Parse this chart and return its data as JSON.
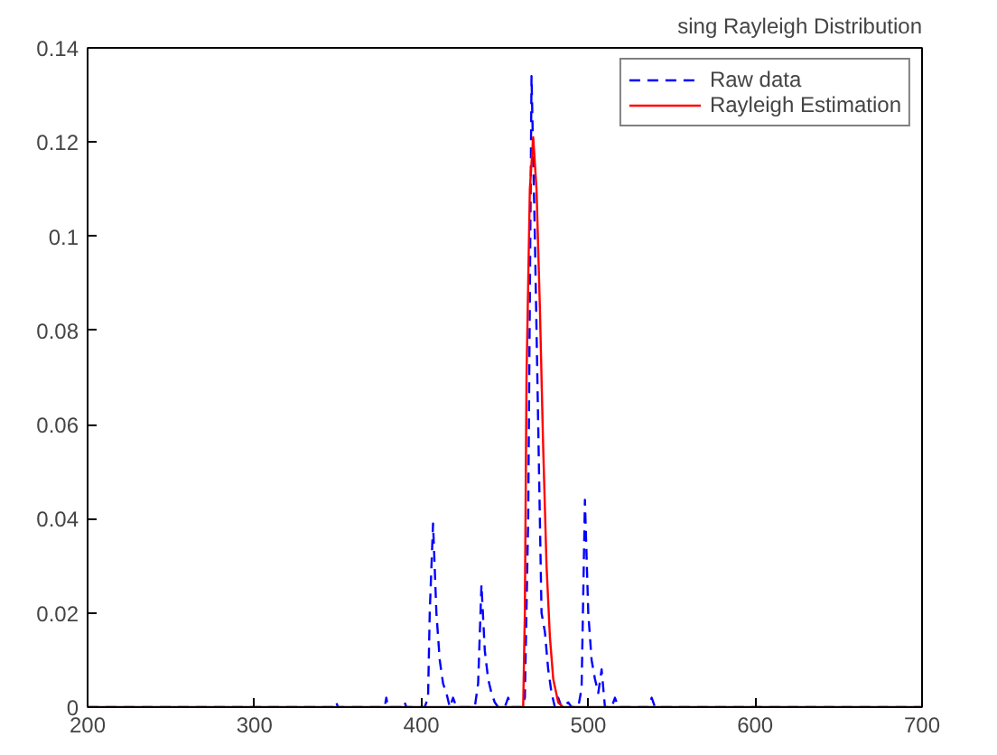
{
  "chart_data": {
    "type": "line",
    "title": "sing Rayleigh Distribution",
    "xlim": [
      200,
      700
    ],
    "xticks": [
      200,
      300,
      400,
      500,
      600,
      700
    ],
    "ylim": [
      0,
      0.14
    ],
    "yticks": [
      0,
      0.02,
      0.04,
      0.06,
      0.08,
      0.1,
      0.12,
      0.14
    ],
    "grid": false,
    "legend": "top right",
    "series": [
      {
        "name": "Raw data",
        "color": "#0000ff",
        "line_style": "dashed",
        "x": [
          200,
          348,
          349,
          350,
          378,
          379,
          380,
          389,
          390,
          391,
          402,
          404,
          405,
          407,
          409,
          411,
          413,
          415,
          417,
          419,
          421,
          432,
          434,
          436,
          438,
          440,
          442,
          444,
          446,
          450,
          452,
          454,
          460,
          462,
          464,
          466,
          468,
          470,
          472,
          474,
          476,
          478,
          480,
          482,
          484,
          488,
          490,
          494,
          496,
          498,
          500,
          502,
          504,
          506,
          508,
          510,
          514,
          516,
          518,
          536,
          538,
          540,
          700
        ],
        "values": [
          0,
          0,
          0.001,
          0,
          0,
          0.002,
          0,
          0,
          0.001,
          0,
          0,
          0.002,
          0.02,
          0.039,
          0.02,
          0.01,
          0.005,
          0.003,
          0,
          0.002,
          0,
          0,
          0.005,
          0.026,
          0.012,
          0.006,
          0.003,
          0.001,
          0,
          0,
          0.002,
          0,
          0,
          0.002,
          0.04,
          0.134,
          0.1,
          0.06,
          0.02,
          0.016,
          0.008,
          0.003,
          0,
          0.002,
          0,
          0.001,
          0,
          0,
          0.004,
          0.044,
          0.02,
          0.01,
          0.006,
          0.003,
          0.008,
          0,
          0,
          0.002,
          0,
          0,
          0.002,
          0,
          0
        ]
      },
      {
        "name": "Rayleigh Estimation",
        "color": "#ff0000",
        "line_style": "solid",
        "x": [
          200,
          461,
          462,
          463,
          465,
          467,
          469,
          471,
          473,
          475,
          477,
          479,
          482,
          485,
          700
        ],
        "values": [
          0,
          0,
          0.02,
          0.07,
          0.11,
          0.121,
          0.11,
          0.085,
          0.055,
          0.03,
          0.015,
          0.006,
          0.001,
          0,
          0
        ]
      }
    ]
  }
}
